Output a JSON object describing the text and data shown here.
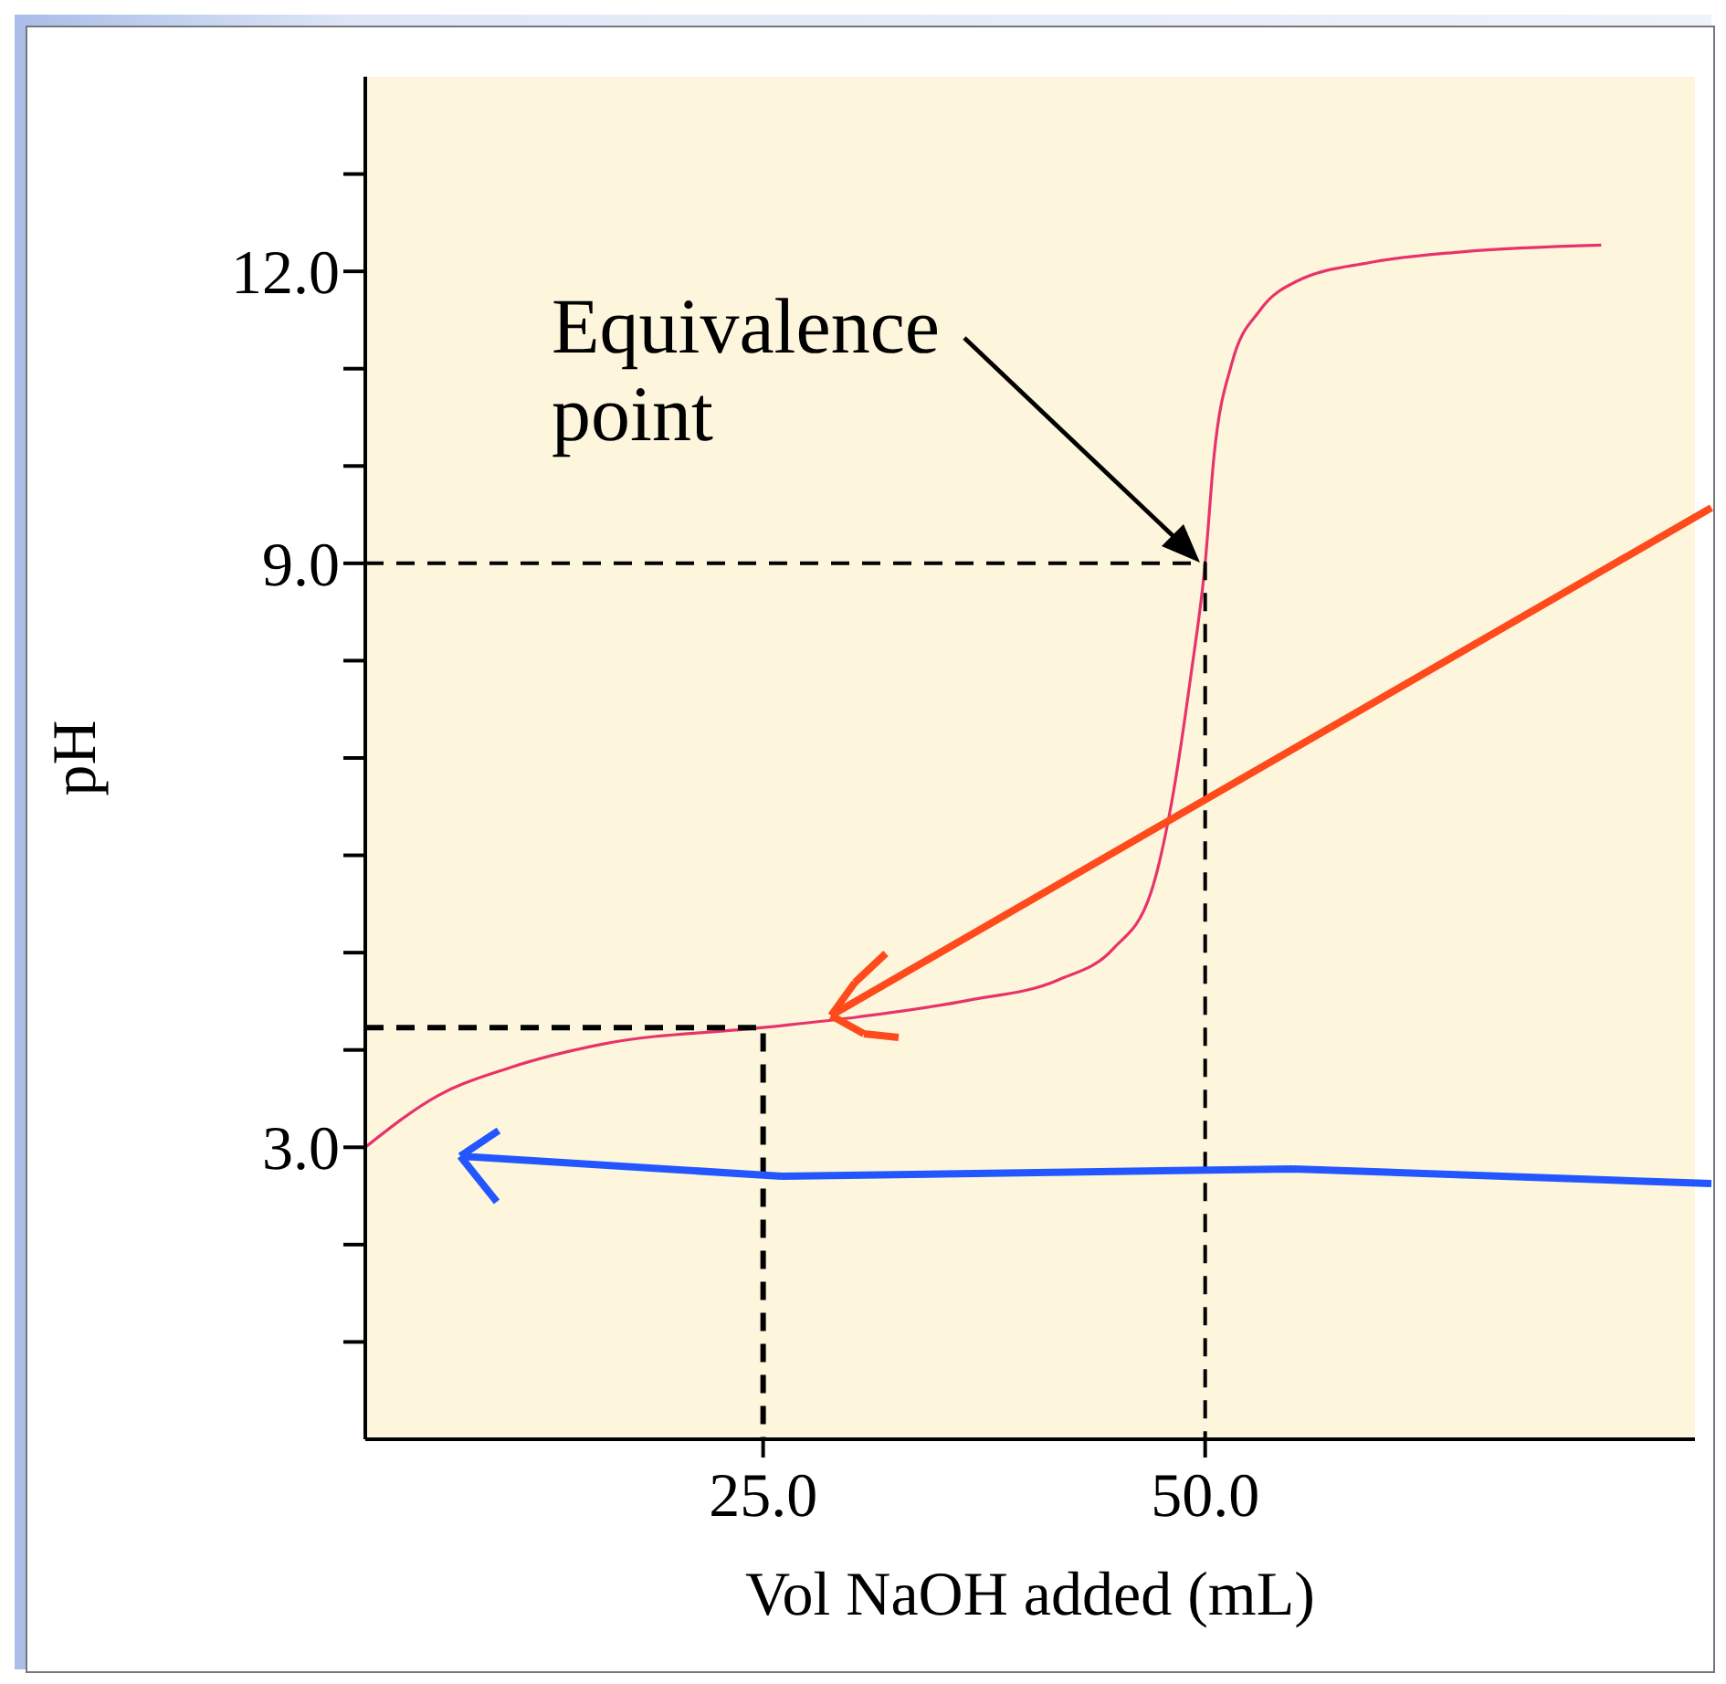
{
  "chart_data": {
    "type": "line",
    "xlabel": "Vol NaOH added (mL)",
    "ylabel": "pH",
    "marker": "none",
    "line_style": "solid",
    "xlim": [
      2.5,
      77.7
    ],
    "ylim": [
      0,
      14
    ],
    "xticks": [
      {
        "value": 25,
        "label": "25.0"
      },
      {
        "value": 50,
        "label": "50.0"
      }
    ],
    "yticks": [
      {
        "value": 1,
        "label": null
      },
      {
        "value": 2,
        "label": null
      },
      {
        "value": 3,
        "label": "3.0"
      },
      {
        "value": 4,
        "label": null
      },
      {
        "value": 5,
        "label": null
      },
      {
        "value": 6,
        "label": null
      },
      {
        "value": 7,
        "label": null
      },
      {
        "value": 8,
        "label": null
      },
      {
        "value": 9,
        "label": "9.0"
      },
      {
        "value": 10,
        "label": null
      },
      {
        "value": 11,
        "label": null
      },
      {
        "value": 12,
        "label": "12.0"
      },
      {
        "value": 13,
        "label": null
      }
    ],
    "series": [
      {
        "color": "#e8336a",
        "x": [
          2.5,
          6.6,
          10.7,
          15.9,
          25,
          30.4,
          36.6,
          41.7,
          44.8,
          46.9,
          48.1,
          49.2,
          50,
          50.5,
          51.5,
          53.1,
          55.2,
          59.3,
          64.5,
          72.4
        ],
        "values": [
          3.0,
          3.53,
          3.82,
          4.06,
          4.23,
          4.34,
          4.51,
          4.72,
          5.04,
          5.6,
          6.54,
          7.86,
          9.0,
          10.1,
          11.05,
          11.6,
          11.9,
          12.09,
          12.2,
          12.27
        ]
      },
      {
        "color": "#000000",
        "line_style": "dashed",
        "x": [
          2.5,
          25,
          25
        ],
        "values": [
          4.23,
          4.23,
          0
        ]
      },
      {
        "color": "#000000",
        "line_style": "dashed",
        "x": [
          2.5,
          50,
          50
        ],
        "values": [
          9,
          9,
          0
        ]
      }
    ],
    "annotations": [
      "Equivalence point"
    ]
  }
}
